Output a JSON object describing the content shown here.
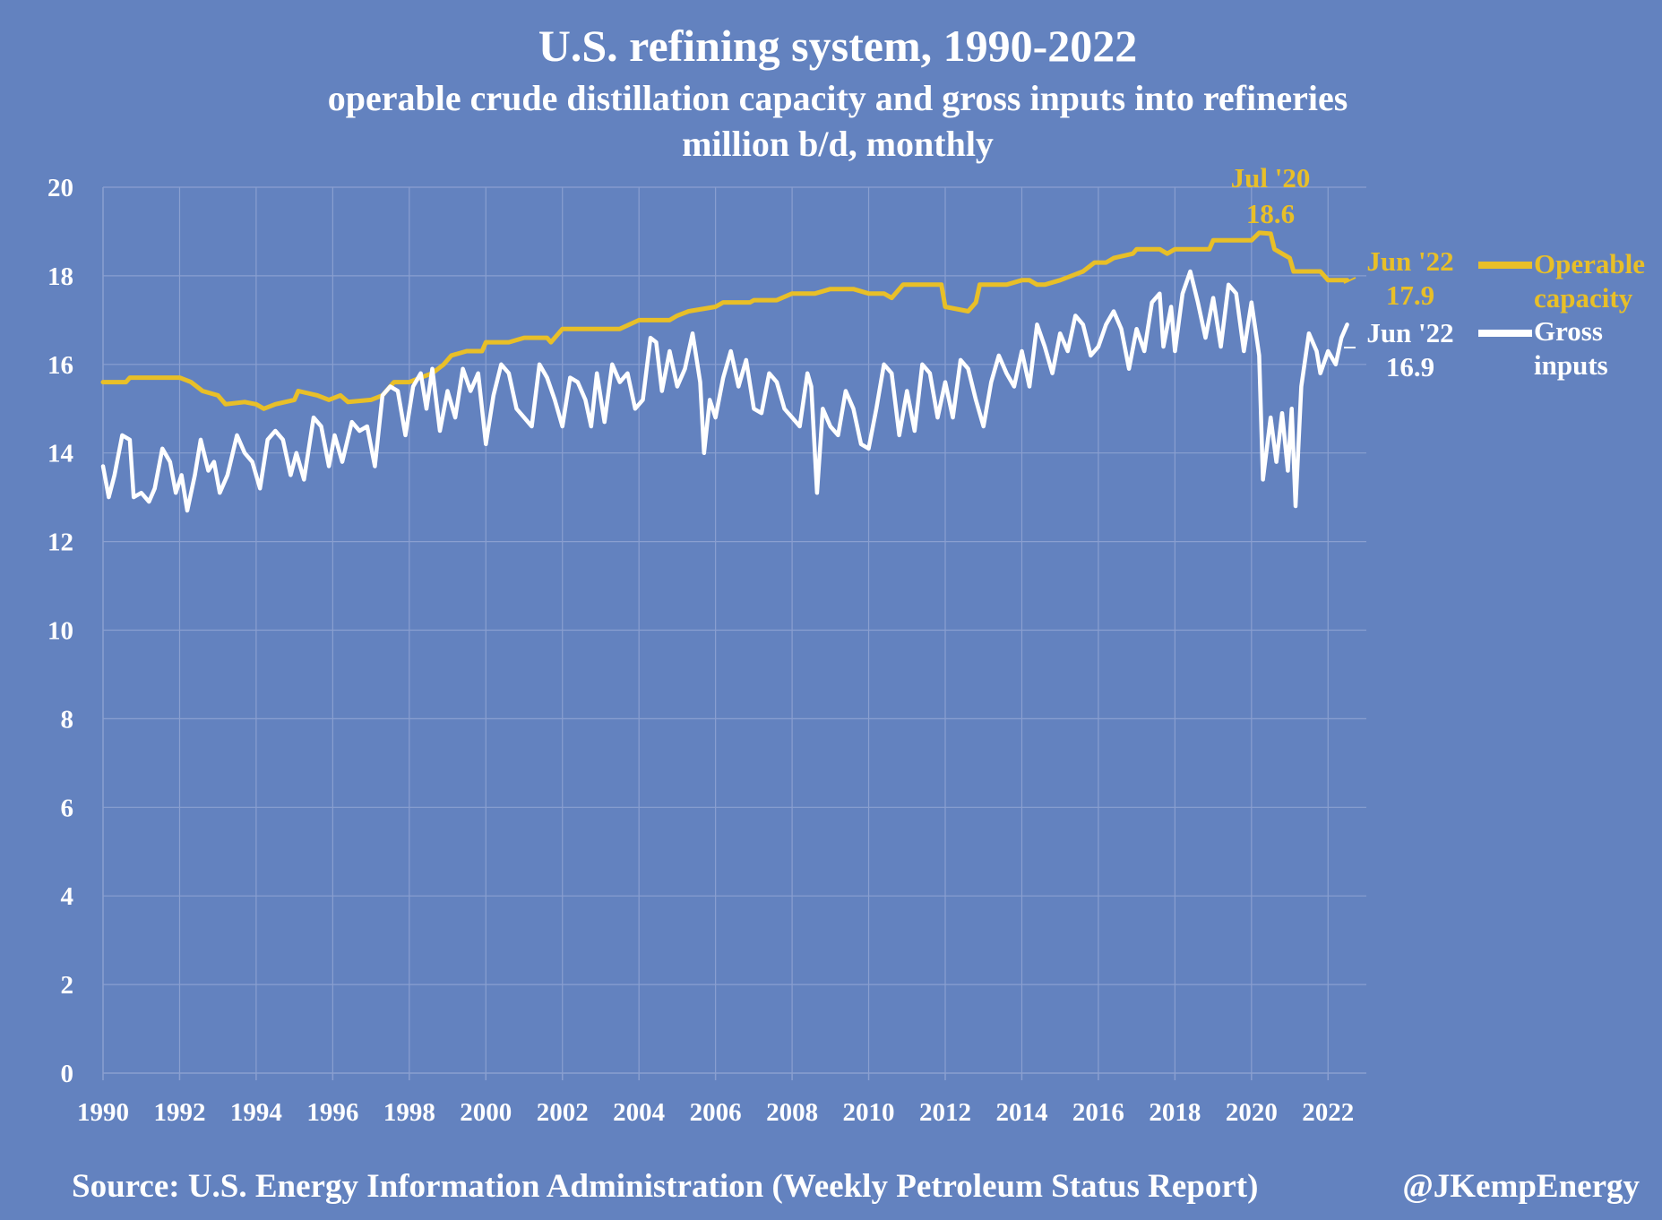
{
  "chart_data": {
    "type": "line",
    "title": "U.S. refining system, 1990-2022",
    "subtitle": "operable crude distillation capacity and gross inputs into refineries",
    "units_line": "million b/d, monthly",
    "xlabel": "",
    "ylabel": "",
    "x_ticks": [
      "1990",
      "1992",
      "1994",
      "1996",
      "1998",
      "2000",
      "2002",
      "2004",
      "2006",
      "2008",
      "2010",
      "2012",
      "2014",
      "2016",
      "2018",
      "2020",
      "2022"
    ],
    "y_ticks": [
      "0",
      "2",
      "4",
      "6",
      "8",
      "10",
      "12",
      "14",
      "16",
      "18",
      "20"
    ],
    "xlim": [
      1990,
      2023
    ],
    "ylim": [
      0,
      20
    ],
    "grid": true,
    "series": [
      {
        "name": "Operable capacity",
        "color": "#e8bf28",
        "points": [
          [
            1990.0,
            15.6
          ],
          [
            1990.6,
            15.6
          ],
          [
            1990.7,
            15.7
          ],
          [
            1991.0,
            15.7
          ],
          [
            1991.6,
            15.7
          ],
          [
            1992.0,
            15.7
          ],
          [
            1992.3,
            15.6
          ],
          [
            1992.6,
            15.4
          ],
          [
            1993.0,
            15.3
          ],
          [
            1993.2,
            15.1
          ],
          [
            1993.7,
            15.15
          ],
          [
            1994.0,
            15.1
          ],
          [
            1994.2,
            15.0
          ],
          [
            1994.5,
            15.1
          ],
          [
            1995.0,
            15.2
          ],
          [
            1995.1,
            15.4
          ],
          [
            1995.6,
            15.3
          ],
          [
            1995.9,
            15.2
          ],
          [
            1996.2,
            15.3
          ],
          [
            1996.4,
            15.15
          ],
          [
            1997.0,
            15.2
          ],
          [
            1997.3,
            15.3
          ],
          [
            1997.6,
            15.6
          ],
          [
            1998.0,
            15.6
          ],
          [
            1998.3,
            15.7
          ],
          [
            1998.6,
            15.8
          ],
          [
            1998.9,
            16.0
          ],
          [
            1999.1,
            16.2
          ],
          [
            1999.5,
            16.3
          ],
          [
            1999.9,
            16.3
          ],
          [
            2000.0,
            16.5
          ],
          [
            2000.6,
            16.5
          ],
          [
            2001.0,
            16.6
          ],
          [
            2001.6,
            16.6
          ],
          [
            2001.7,
            16.5
          ],
          [
            2002.0,
            16.8
          ],
          [
            2002.6,
            16.8
          ],
          [
            2003.0,
            16.8
          ],
          [
            2003.5,
            16.8
          ],
          [
            2004.0,
            17.0
          ],
          [
            2004.8,
            17.0
          ],
          [
            2005.0,
            17.1
          ],
          [
            2005.3,
            17.2
          ],
          [
            2006.0,
            17.3
          ],
          [
            2006.2,
            17.4
          ],
          [
            2006.9,
            17.4
          ],
          [
            2007.0,
            17.45
          ],
          [
            2007.6,
            17.45
          ],
          [
            2008.0,
            17.6
          ],
          [
            2008.6,
            17.6
          ],
          [
            2009.0,
            17.7
          ],
          [
            2009.6,
            17.7
          ],
          [
            2010.0,
            17.6
          ],
          [
            2010.4,
            17.6
          ],
          [
            2010.6,
            17.5
          ],
          [
            2010.9,
            17.8
          ],
          [
            2011.5,
            17.8
          ],
          [
            2011.9,
            17.8
          ],
          [
            2012.0,
            17.3
          ],
          [
            2012.6,
            17.2
          ],
          [
            2012.8,
            17.4
          ],
          [
            2012.9,
            17.8
          ],
          [
            2013.6,
            17.8
          ],
          [
            2014.0,
            17.9
          ],
          [
            2014.2,
            17.9
          ],
          [
            2014.4,
            17.8
          ],
          [
            2014.6,
            17.8
          ],
          [
            2015.0,
            17.9
          ],
          [
            2015.3,
            18.0
          ],
          [
            2015.6,
            18.1
          ],
          [
            2015.9,
            18.3
          ],
          [
            2016.2,
            18.3
          ],
          [
            2016.4,
            18.4
          ],
          [
            2016.9,
            18.5
          ],
          [
            2017.0,
            18.6
          ],
          [
            2017.6,
            18.6
          ],
          [
            2017.8,
            18.5
          ],
          [
            2018.0,
            18.6
          ],
          [
            2018.9,
            18.6
          ],
          [
            2019.0,
            18.8
          ],
          [
            2019.6,
            18.8
          ],
          [
            2020.0,
            18.8
          ],
          [
            2020.2,
            18.97
          ],
          [
            2020.5,
            18.95
          ],
          [
            2020.6,
            18.6
          ],
          [
            2020.8,
            18.5
          ],
          [
            2021.0,
            18.4
          ],
          [
            2021.1,
            18.1
          ],
          [
            2021.8,
            18.1
          ],
          [
            2022.0,
            17.9
          ],
          [
            2022.2,
            17.9
          ],
          [
            2022.5,
            17.9
          ]
        ]
      },
      {
        "name": "Gross inputs",
        "color": "#ffffff",
        "points": [
          [
            1990.0,
            13.7
          ],
          [
            1990.15,
            13.0
          ],
          [
            1990.3,
            13.5
          ],
          [
            1990.5,
            14.4
          ],
          [
            1990.7,
            14.3
          ],
          [
            1990.8,
            13.0
          ],
          [
            1991.0,
            13.1
          ],
          [
            1991.2,
            12.9
          ],
          [
            1991.35,
            13.2
          ],
          [
            1991.55,
            14.1
          ],
          [
            1991.75,
            13.8
          ],
          [
            1991.9,
            13.1
          ],
          [
            1992.05,
            13.5
          ],
          [
            1992.2,
            12.7
          ],
          [
            1992.4,
            13.5
          ],
          [
            1992.55,
            14.3
          ],
          [
            1992.75,
            13.6
          ],
          [
            1992.9,
            13.8
          ],
          [
            1993.05,
            13.1
          ],
          [
            1993.25,
            13.5
          ],
          [
            1993.5,
            14.4
          ],
          [
            1993.7,
            14.0
          ],
          [
            1993.9,
            13.8
          ],
          [
            1994.1,
            13.2
          ],
          [
            1994.3,
            14.3
          ],
          [
            1994.5,
            14.5
          ],
          [
            1994.7,
            14.3
          ],
          [
            1994.9,
            13.5
          ],
          [
            1995.05,
            14.0
          ],
          [
            1995.25,
            13.4
          ],
          [
            1995.5,
            14.8
          ],
          [
            1995.7,
            14.6
          ],
          [
            1995.9,
            13.7
          ],
          [
            1996.05,
            14.4
          ],
          [
            1996.25,
            13.8
          ],
          [
            1996.5,
            14.7
          ],
          [
            1996.7,
            14.5
          ],
          [
            1996.9,
            14.6
          ],
          [
            1997.1,
            13.7
          ],
          [
            1997.3,
            15.3
          ],
          [
            1997.5,
            15.5
          ],
          [
            1997.7,
            15.4
          ],
          [
            1997.9,
            14.4
          ],
          [
            1998.1,
            15.5
          ],
          [
            1998.3,
            15.8
          ],
          [
            1998.45,
            15.0
          ],
          [
            1998.6,
            15.9
          ],
          [
            1998.8,
            14.5
          ],
          [
            1999.0,
            15.4
          ],
          [
            1999.2,
            14.8
          ],
          [
            1999.4,
            15.9
          ],
          [
            1999.6,
            15.4
          ],
          [
            1999.8,
            15.8
          ],
          [
            2000.0,
            14.2
          ],
          [
            2000.2,
            15.3
          ],
          [
            2000.4,
            16.0
          ],
          [
            2000.6,
            15.8
          ],
          [
            2000.8,
            15.0
          ],
          [
            2001.0,
            14.8
          ],
          [
            2001.2,
            14.6
          ],
          [
            2001.4,
            16.0
          ],
          [
            2001.6,
            15.7
          ],
          [
            2001.8,
            15.2
          ],
          [
            2002.0,
            14.6
          ],
          [
            2002.2,
            15.7
          ],
          [
            2002.4,
            15.6
          ],
          [
            2002.6,
            15.2
          ],
          [
            2002.75,
            14.6
          ],
          [
            2002.9,
            15.8
          ],
          [
            2003.1,
            14.7
          ],
          [
            2003.3,
            16.0
          ],
          [
            2003.5,
            15.6
          ],
          [
            2003.7,
            15.8
          ],
          [
            2003.9,
            15.0
          ],
          [
            2004.1,
            15.2
          ],
          [
            2004.3,
            16.6
          ],
          [
            2004.45,
            16.5
          ],
          [
            2004.6,
            15.4
          ],
          [
            2004.8,
            16.3
          ],
          [
            2005.0,
            15.5
          ],
          [
            2005.2,
            15.9
          ],
          [
            2005.4,
            16.7
          ],
          [
            2005.6,
            15.6
          ],
          [
            2005.7,
            14.0
          ],
          [
            2005.85,
            15.2
          ],
          [
            2006.0,
            14.8
          ],
          [
            2006.2,
            15.7
          ],
          [
            2006.4,
            16.3
          ],
          [
            2006.6,
            15.5
          ],
          [
            2006.8,
            16.1
          ],
          [
            2007.0,
            15.0
          ],
          [
            2007.2,
            14.9
          ],
          [
            2007.4,
            15.8
          ],
          [
            2007.6,
            15.6
          ],
          [
            2007.8,
            15.0
          ],
          [
            2008.0,
            14.8
          ],
          [
            2008.2,
            14.6
          ],
          [
            2008.4,
            15.8
          ],
          [
            2008.5,
            15.5
          ],
          [
            2008.65,
            13.1
          ],
          [
            2008.8,
            15.0
          ],
          [
            2009.0,
            14.6
          ],
          [
            2009.2,
            14.4
          ],
          [
            2009.4,
            15.4
          ],
          [
            2009.6,
            15.0
          ],
          [
            2009.8,
            14.2
          ],
          [
            2010.0,
            14.1
          ],
          [
            2010.2,
            15.0
          ],
          [
            2010.4,
            16.0
          ],
          [
            2010.6,
            15.8
          ],
          [
            2010.8,
            14.4
          ],
          [
            2011.0,
            15.4
          ],
          [
            2011.2,
            14.5
          ],
          [
            2011.4,
            16.0
          ],
          [
            2011.6,
            15.8
          ],
          [
            2011.8,
            14.8
          ],
          [
            2012.0,
            15.6
          ],
          [
            2012.2,
            14.8
          ],
          [
            2012.4,
            16.1
          ],
          [
            2012.6,
            15.9
          ],
          [
            2012.8,
            15.2
          ],
          [
            2013.0,
            14.6
          ],
          [
            2013.2,
            15.6
          ],
          [
            2013.4,
            16.2
          ],
          [
            2013.6,
            15.8
          ],
          [
            2013.8,
            15.5
          ],
          [
            2014.0,
            16.3
          ],
          [
            2014.2,
            15.5
          ],
          [
            2014.4,
            16.9
          ],
          [
            2014.6,
            16.4
          ],
          [
            2014.8,
            15.8
          ],
          [
            2015.0,
            16.7
          ],
          [
            2015.2,
            16.3
          ],
          [
            2015.4,
            17.1
          ],
          [
            2015.6,
            16.9
          ],
          [
            2015.8,
            16.2
          ],
          [
            2016.0,
            16.4
          ],
          [
            2016.2,
            16.9
          ],
          [
            2016.4,
            17.2
          ],
          [
            2016.6,
            16.8
          ],
          [
            2016.8,
            15.9
          ],
          [
            2017.0,
            16.8
          ],
          [
            2017.2,
            16.3
          ],
          [
            2017.4,
            17.4
          ],
          [
            2017.6,
            17.6
          ],
          [
            2017.7,
            16.4
          ],
          [
            2017.9,
            17.3
          ],
          [
            2018.0,
            16.3
          ],
          [
            2018.2,
            17.6
          ],
          [
            2018.4,
            18.1
          ],
          [
            2018.6,
            17.4
          ],
          [
            2018.8,
            16.6
          ],
          [
            2019.0,
            17.5
          ],
          [
            2019.2,
            16.4
          ],
          [
            2019.4,
            17.8
          ],
          [
            2019.6,
            17.6
          ],
          [
            2019.8,
            16.3
          ],
          [
            2020.0,
            17.4
          ],
          [
            2020.2,
            16.2
          ],
          [
            2020.3,
            13.4
          ],
          [
            2020.5,
            14.8
          ],
          [
            2020.65,
            13.8
          ],
          [
            2020.8,
            14.9
          ],
          [
            2020.95,
            13.6
          ],
          [
            2021.05,
            15.0
          ],
          [
            2021.15,
            12.8
          ],
          [
            2021.3,
            15.5
          ],
          [
            2021.5,
            16.7
          ],
          [
            2021.7,
            16.3
          ],
          [
            2021.8,
            15.8
          ],
          [
            2022.0,
            16.3
          ],
          [
            2022.2,
            16.0
          ],
          [
            2022.35,
            16.6
          ],
          [
            2022.5,
            16.9
          ]
        ]
      }
    ],
    "annotations": [
      {
        "text": "Jul '20",
        "color": "#e8bf28"
      },
      {
        "text": "18.6",
        "color": "#e8bf28"
      },
      {
        "text": "Jun '22",
        "color": "#e8bf28"
      },
      {
        "text": "17.9",
        "color": "#e8bf28"
      },
      {
        "text": "Jun '22",
        "color": "#ffffff"
      },
      {
        "text": "16.9",
        "color": "#ffffff"
      }
    ],
    "legend": [
      {
        "label_line1": "Operable",
        "label_line2": "capacity",
        "color": "#e8bf28"
      },
      {
        "label_line1": "Gross",
        "label_line2": "inputs",
        "color": "#ffffff"
      }
    ],
    "legend_position": "right",
    "source": "Source: U.S. Energy Information Administration (Weekly Petroleum Status Report)",
    "credit": "@JKempEnergy"
  },
  "colors": {
    "background": "#6382bf",
    "grid": "#8a9fd0",
    "capacity": "#e8bf28",
    "inputs": "#ffffff"
  }
}
